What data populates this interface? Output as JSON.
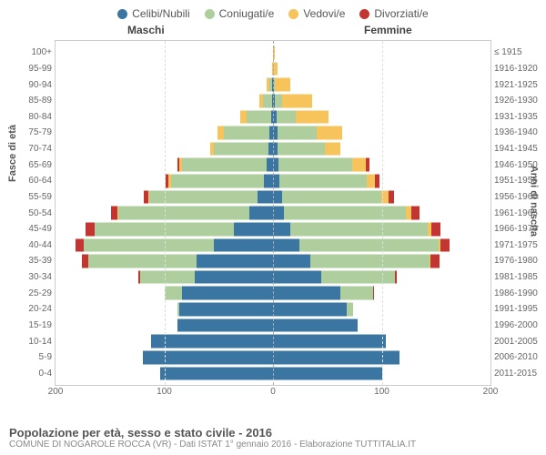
{
  "legend": {
    "items": [
      {
        "label": "Celibi/Nubili",
        "color": "#3b76a3"
      },
      {
        "label": "Coniugati/e",
        "color": "#aecf9d"
      },
      {
        "label": "Vedovi/e",
        "color": "#f7c35b"
      },
      {
        "label": "Divorziati/e",
        "color": "#c23531"
      }
    ]
  },
  "headers": {
    "male": "Maschi",
    "female": "Femmine"
  },
  "axis": {
    "left_title": "Fasce di età",
    "right_title": "Anni di nascita",
    "xmax": 200,
    "xticks": [
      200,
      100,
      0,
      100,
      200
    ]
  },
  "footer": {
    "title": "Popolazione per età, sesso e stato civile - 2016",
    "sub": "COMUNE DI NOGAROLE ROCCA (VR) - Dati ISTAT 1° gennaio 2016 - Elaborazione TUTTITALIA.IT"
  },
  "colors": {
    "celibi": "#3b76a3",
    "coniugati": "#aecf9d",
    "vedovi": "#f7c35b",
    "divorziati": "#c23531",
    "grid": "#dddddd",
    "center": "#aaaaaa",
    "bg": "#ffffff"
  },
  "rows": [
    {
      "age": "100+",
      "birth": "≤ 1915",
      "m": {
        "c": 0,
        "m": 0,
        "w": 0,
        "d": 0
      },
      "f": {
        "c": 0,
        "m": 0,
        "w": 2,
        "d": 0
      }
    },
    {
      "age": "95-99",
      "birth": "1916-1920",
      "m": {
        "c": 0,
        "m": 0,
        "w": 1,
        "d": 0
      },
      "f": {
        "c": 0,
        "m": 0,
        "w": 4,
        "d": 0
      }
    },
    {
      "age": "90-94",
      "birth": "1921-1925",
      "m": {
        "c": 1,
        "m": 2,
        "w": 3,
        "d": 0
      },
      "f": {
        "c": 1,
        "m": 1,
        "w": 14,
        "d": 0
      }
    },
    {
      "age": "85-89",
      "birth": "1926-1930",
      "m": {
        "c": 1,
        "m": 8,
        "w": 4,
        "d": 0
      },
      "f": {
        "c": 2,
        "m": 6,
        "w": 28,
        "d": 0
      }
    },
    {
      "age": "80-84",
      "birth": "1931-1935",
      "m": {
        "c": 2,
        "m": 22,
        "w": 6,
        "d": 0
      },
      "f": {
        "c": 3,
        "m": 18,
        "w": 30,
        "d": 0
      }
    },
    {
      "age": "75-79",
      "birth": "1936-1940",
      "m": {
        "c": 3,
        "m": 42,
        "w": 6,
        "d": 0
      },
      "f": {
        "c": 4,
        "m": 36,
        "w": 24,
        "d": 0
      }
    },
    {
      "age": "70-74",
      "birth": "1941-1945",
      "m": {
        "c": 4,
        "m": 50,
        "w": 4,
        "d": 0
      },
      "f": {
        "c": 4,
        "m": 44,
        "w": 14,
        "d": 0
      }
    },
    {
      "age": "65-69",
      "birth": "1946-1950",
      "m": {
        "c": 6,
        "m": 78,
        "w": 2,
        "d": 2
      },
      "f": {
        "c": 5,
        "m": 68,
        "w": 12,
        "d": 4
      }
    },
    {
      "age": "60-64",
      "birth": "1951-1955",
      "m": {
        "c": 8,
        "m": 86,
        "w": 2,
        "d": 3
      },
      "f": {
        "c": 6,
        "m": 80,
        "w": 8,
        "d": 4
      }
    },
    {
      "age": "55-59",
      "birth": "1956-1960",
      "m": {
        "c": 14,
        "m": 100,
        "w": 1,
        "d": 4
      },
      "f": {
        "c": 8,
        "m": 92,
        "w": 6,
        "d": 5
      }
    },
    {
      "age": "50-54",
      "birth": "1961-1965",
      "m": {
        "c": 22,
        "m": 120,
        "w": 1,
        "d": 6
      },
      "f": {
        "c": 10,
        "m": 112,
        "w": 5,
        "d": 8
      }
    },
    {
      "age": "45-49",
      "birth": "1966-1970",
      "m": {
        "c": 36,
        "m": 128,
        "w": 0,
        "d": 8
      },
      "f": {
        "c": 16,
        "m": 126,
        "w": 4,
        "d": 8
      }
    },
    {
      "age": "40-44",
      "birth": "1971-1975",
      "m": {
        "c": 54,
        "m": 120,
        "w": 0,
        "d": 8
      },
      "f": {
        "c": 24,
        "m": 128,
        "w": 2,
        "d": 8
      }
    },
    {
      "age": "35-39",
      "birth": "1976-1980",
      "m": {
        "c": 70,
        "m": 100,
        "w": 0,
        "d": 6
      },
      "f": {
        "c": 34,
        "m": 110,
        "w": 1,
        "d": 8
      }
    },
    {
      "age": "30-34",
      "birth": "1981-1985",
      "m": {
        "c": 72,
        "m": 50,
        "w": 0,
        "d": 2
      },
      "f": {
        "c": 44,
        "m": 68,
        "w": 0,
        "d": 2
      }
    },
    {
      "age": "25-29",
      "birth": "1986-1990",
      "m": {
        "c": 84,
        "m": 16,
        "w": 0,
        "d": 0
      },
      "f": {
        "c": 62,
        "m": 30,
        "w": 0,
        "d": 1
      }
    },
    {
      "age": "20-24",
      "birth": "1991-1995",
      "m": {
        "c": 86,
        "m": 2,
        "w": 0,
        "d": 0
      },
      "f": {
        "c": 68,
        "m": 6,
        "w": 0,
        "d": 0
      }
    },
    {
      "age": "15-19",
      "birth": "1996-2000",
      "m": {
        "c": 88,
        "m": 0,
        "w": 0,
        "d": 0
      },
      "f": {
        "c": 78,
        "m": 0,
        "w": 0,
        "d": 0
      }
    },
    {
      "age": "10-14",
      "birth": "2001-2005",
      "m": {
        "c": 112,
        "m": 0,
        "w": 0,
        "d": 0
      },
      "f": {
        "c": 104,
        "m": 0,
        "w": 0,
        "d": 0
      }
    },
    {
      "age": "5-9",
      "birth": "2006-2010",
      "m": {
        "c": 120,
        "m": 0,
        "w": 0,
        "d": 0
      },
      "f": {
        "c": 116,
        "m": 0,
        "w": 0,
        "d": 0
      }
    },
    {
      "age": "0-4",
      "birth": "2011-2015",
      "m": {
        "c": 104,
        "m": 0,
        "w": 0,
        "d": 0
      },
      "f": {
        "c": 100,
        "m": 0,
        "w": 0,
        "d": 0
      }
    }
  ]
}
